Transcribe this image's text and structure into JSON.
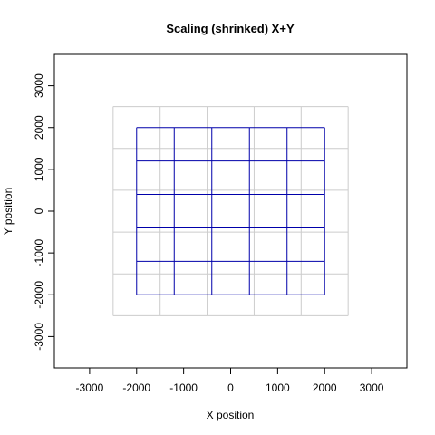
{
  "chart_data": {
    "type": "line",
    "title": "Scaling (shrinked) X+Y",
    "xlabel": "X position",
    "ylabel": "Y position",
    "xlim": [
      -3750,
      3750
    ],
    "ylim": [
      -3750,
      3750
    ],
    "x_ticks": [
      -3000,
      -2000,
      -1000,
      0,
      1000,
      2000,
      3000
    ],
    "y_ticks": [
      -3000,
      -2000,
      -1000,
      0,
      1000,
      2000,
      3000
    ],
    "grid": false,
    "colors": {
      "original": "#cccccc",
      "scaled": "#0000aa"
    },
    "series": [
      {
        "x_lines": [
          -2500,
          -1500,
          -500,
          500,
          1500,
          2500
        ],
        "y_lines": [
          -2500,
          -1500,
          -500,
          500,
          1500,
          2500
        ],
        "extent": [
          -2500,
          2500
        ]
      },
      {
        "x_lines": [
          -2000,
          -1200,
          -400,
          400,
          1200,
          2000
        ],
        "y_lines": [
          -2000,
          -1200,
          -400,
          400,
          1200,
          2000
        ],
        "extent": [
          -2000,
          2000
        ]
      }
    ]
  }
}
